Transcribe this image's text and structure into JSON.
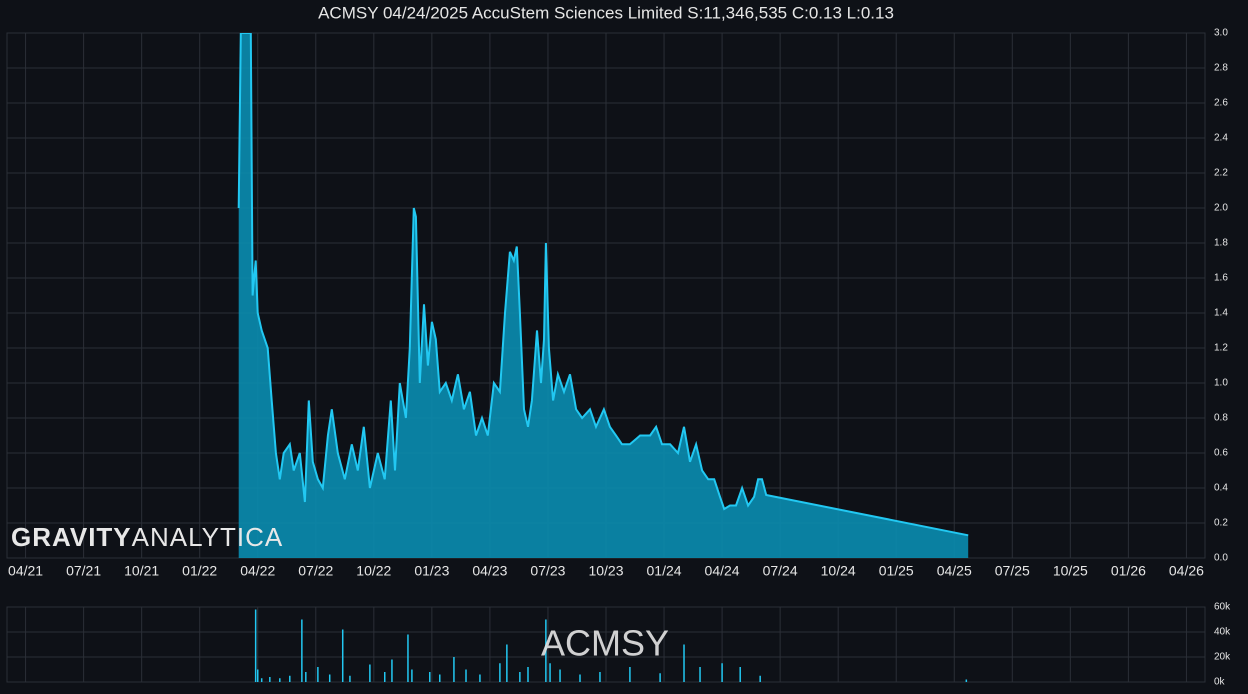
{
  "chart_data": [
    {
      "type": "area",
      "title": "ACMSY 04/24/2025 AccuStem Sciences Limited S:11,346,535 C:0.13 L:0.13",
      "watermark": [
        "GRAVITY",
        "ANALYTICA"
      ],
      "color": "#22c8f2",
      "fill_color": "#0a8db0",
      "grid": true,
      "xlim": [
        2021.17,
        2026.33
      ],
      "xticks": [
        {
          "value": 2021.25,
          "label": "04/21"
        },
        {
          "value": 2021.5,
          "label": "07/21"
        },
        {
          "value": 2021.75,
          "label": "10/21"
        },
        {
          "value": 2022.0,
          "label": "01/22"
        },
        {
          "value": 2022.25,
          "label": "04/22"
        },
        {
          "value": 2022.5,
          "label": "07/22"
        },
        {
          "value": 2022.75,
          "label": "10/22"
        },
        {
          "value": 2023.0,
          "label": "01/23"
        },
        {
          "value": 2023.25,
          "label": "04/23"
        },
        {
          "value": 2023.5,
          "label": "07/23"
        },
        {
          "value": 2023.75,
          "label": "10/23"
        },
        {
          "value": 2024.0,
          "label": "01/24"
        },
        {
          "value": 2024.25,
          "label": "04/24"
        },
        {
          "value": 2024.5,
          "label": "07/24"
        },
        {
          "value": 2024.75,
          "label": "10/24"
        },
        {
          "value": 2025.0,
          "label": "01/25"
        },
        {
          "value": 2025.25,
          "label": "04/25"
        },
        {
          "value": 2025.5,
          "label": "07/25"
        },
        {
          "value": 2025.75,
          "label": "10/25"
        },
        {
          "value": 2026.0,
          "label": "01/26"
        },
        {
          "value": 2026.25,
          "label": "04/26"
        }
      ],
      "ylim": [
        0,
        3
      ],
      "yticks": [
        {
          "value": 0,
          "label": "0.0"
        },
        0.2,
        0.4,
        0.6,
        0.8,
        {
          "value": 1,
          "label": "1.0"
        },
        1.2,
        1.4,
        1.6,
        1.8,
        {
          "value": 2,
          "label": "2.0"
        },
        2.2,
        2.4,
        2.6,
        2.8,
        {
          "value": 3,
          "label": "3.0"
        }
      ],
      "x": [
        2022.168,
        2022.177,
        2022.22,
        2022.228,
        2022.241,
        2022.25,
        2022.267,
        2022.293,
        2022.31,
        2022.328,
        2022.345,
        2022.362,
        2022.388,
        2022.405,
        2022.431,
        2022.453,
        2022.47,
        2022.487,
        2022.509,
        2022.53,
        2022.552,
        2022.569,
        2022.595,
        2022.625,
        2022.655,
        2022.681,
        2022.707,
        2022.733,
        2022.767,
        2022.797,
        2022.823,
        2022.841,
        2022.862,
        2022.888,
        2022.905,
        2022.922,
        2022.931,
        2022.948,
        2022.966,
        2022.983,
        2023.0,
        2023.017,
        2023.034,
        2023.06,
        2023.086,
        2023.112,
        2023.138,
        2023.164,
        2023.19,
        2023.216,
        2023.241,
        2023.267,
        2023.293,
        2023.315,
        2023.336,
        2023.353,
        2023.366,
        2023.379,
        2023.397,
        2023.414,
        2023.431,
        2023.453,
        2023.47,
        2023.483,
        2023.491,
        2023.504,
        2023.522,
        2023.543,
        2023.569,
        2023.595,
        2023.621,
        2023.647,
        2023.681,
        2023.707,
        2023.741,
        2023.767,
        2023.793,
        2023.819,
        2023.853,
        2023.897,
        2023.94,
        2023.966,
        2023.991,
        2024.026,
        2024.06,
        2024.086,
        2024.112,
        2024.138,
        2024.164,
        2024.19,
        2024.216,
        2024.241,
        2024.259,
        2024.284,
        2024.31,
        2024.336,
        2024.362,
        2024.388,
        2024.405,
        2024.422,
        2024.44,
        2025.31
      ],
      "values": [
        2.0,
        3.0,
        3.0,
        1.5,
        1.7,
        1.4,
        1.3,
        1.2,
        0.9,
        0.6,
        0.45,
        0.6,
        0.65,
        0.5,
        0.6,
        0.32,
        0.9,
        0.55,
        0.45,
        0.4,
        0.7,
        0.85,
        0.6,
        0.45,
        0.65,
        0.5,
        0.75,
        0.4,
        0.6,
        0.45,
        0.9,
        0.5,
        1.0,
        0.8,
        1.2,
        2.0,
        1.95,
        1.0,
        1.45,
        1.1,
        1.35,
        1.25,
        0.95,
        1.0,
        0.9,
        1.05,
        0.85,
        0.95,
        0.7,
        0.8,
        0.7,
        1.0,
        0.95,
        1.4,
        1.75,
        1.7,
        1.78,
        1.4,
        0.85,
        0.75,
        0.9,
        1.3,
        1.0,
        1.25,
        1.8,
        1.2,
        0.9,
        1.05,
        0.95,
        1.05,
        0.85,
        0.8,
        0.85,
        0.75,
        0.85,
        0.75,
        0.7,
        0.65,
        0.65,
        0.7,
        0.7,
        0.75,
        0.65,
        0.65,
        0.6,
        0.75,
        0.55,
        0.65,
        0.5,
        0.45,
        0.45,
        0.35,
        0.28,
        0.3,
        0.3,
        0.4,
        0.3,
        0.35,
        0.45,
        0.45,
        0.36,
        0.13
      ]
    },
    {
      "type": "bar",
      "annotation": "ACMSY",
      "color": "#22c8f2",
      "xlim": [
        2021.17,
        2026.33
      ],
      "ylim": [
        0,
        60000
      ],
      "yticks": [
        {
          "value": 0,
          "label": "0k"
        },
        {
          "value": 20000,
          "label": "20k"
        },
        {
          "value": 40000,
          "label": "40k"
        },
        {
          "value": 60000,
          "label": "60k"
        }
      ],
      "x": [
        2022.241,
        2022.25,
        2022.267,
        2022.302,
        2022.345,
        2022.388,
        2022.44,
        2022.457,
        2022.509,
        2022.56,
        2022.616,
        2022.647,
        2022.733,
        2022.797,
        2022.828,
        2022.897,
        2022.914,
        2022.991,
        2023.034,
        2023.095,
        2023.147,
        2023.207,
        2023.293,
        2023.323,
        2023.379,
        2023.414,
        2023.491,
        2023.509,
        2023.552,
        2023.638,
        2023.724,
        2023.853,
        2023.983,
        2024.086,
        2024.155,
        2024.25,
        2024.328,
        2024.414,
        2025.302
      ],
      "values": [
        58000,
        10000,
        3000,
        4000,
        3000,
        5000,
        50000,
        8000,
        12000,
        6000,
        42000,
        5000,
        14000,
        8000,
        18000,
        38000,
        10000,
        8000,
        6000,
        20000,
        10000,
        6000,
        15000,
        30000,
        8000,
        12000,
        50000,
        15000,
        10000,
        6000,
        8000,
        12000,
        7000,
        30000,
        12000,
        15000,
        12000,
        5000,
        2000
      ]
    }
  ]
}
